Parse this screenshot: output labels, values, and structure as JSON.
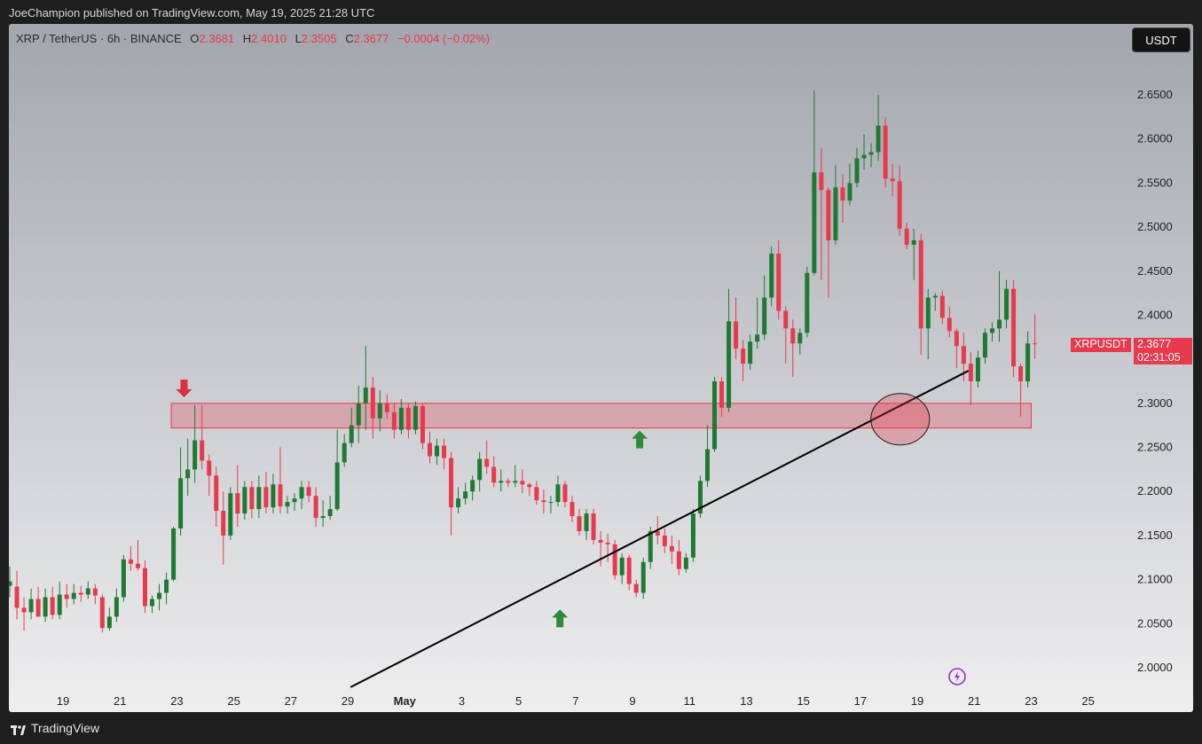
{
  "publisher_line": "JoeChampion published on TradingView.com, May 19, 2025 21:28 UTC",
  "legend": {
    "symbol": "XRP / TetherUS · 6h · BINANCE",
    "o_label": "O",
    "o": "2.3681",
    "h_label": "H",
    "h": "2.4010",
    "l_label": "L",
    "l": "2.3505",
    "c_label": "C",
    "c": "2.3677",
    "change": "−0.0004 (−0.02%)"
  },
  "currency_button": "USDT",
  "last_price": {
    "ticker": "XRPUSDT",
    "price": "2.3677",
    "countdown": "02:31:05"
  },
  "footer": {
    "brand": "TradingView"
  },
  "colors": {
    "up": "#1e7a33",
    "down": "#e8394d",
    "zone_fill": "#e8394d",
    "arrow_up": "#2f8a3c",
    "arrow_down": "#d8313f",
    "trendline": "#000000",
    "lightning": "#9b30c8"
  },
  "icons": {
    "lightning": "lightning-icon",
    "logo": "tradingview-logo-icon"
  },
  "chart_data": {
    "type": "candlestick",
    "interval": "6h",
    "y_ticks": [
      "2.6500",
      "2.6000",
      "2.5500",
      "2.5000",
      "2.4500",
      "2.4000",
      "2.3500",
      "2.3000",
      "2.2500",
      "2.2000",
      "2.1500",
      "2.1000",
      "2.0500",
      "2.0000"
    ],
    "x_ticks": [
      "19",
      "21",
      "23",
      "25",
      "27",
      "29",
      "May",
      "3",
      "5",
      "7",
      "9",
      "11",
      "13",
      "15",
      "17",
      "19",
      "21",
      "23",
      "25"
    ],
    "x_tick_days": [
      19,
      21,
      23,
      25,
      27,
      29,
      31,
      33,
      35,
      37,
      39,
      41,
      43,
      45,
      47,
      49,
      51,
      53,
      55
    ],
    "ylim": [
      1.98,
      2.72
    ],
    "xlim": [
      17.13,
      56.35
    ],
    "resistance_zone": {
      "low": 2.272,
      "high": 2.3,
      "from_day": 22.8,
      "to_day": 53.0
    },
    "trendline": {
      "from": {
        "day": 29.1,
        "price": 1.978
      },
      "to": {
        "day": 50.8,
        "price": 2.337
      }
    },
    "highlight_circle": {
      "day": 48.4,
      "price": 2.282
    },
    "arrows": [
      {
        "direction": "down",
        "day": 23.25,
        "price": 2.318
      },
      {
        "direction": "up",
        "day": 36.45,
        "price": 2.055
      },
      {
        "direction": "up",
        "day": 39.25,
        "price": 2.258
      }
    ],
    "candles": [
      {
        "day": 17.13,
        "o": 2.093,
        "h": 2.115,
        "l": 2.08,
        "c": 2.098
      },
      {
        "day": 17.38,
        "o": 2.092,
        "h": 2.11,
        "l": 2.055,
        "c": 2.068
      },
      {
        "day": 17.63,
        "o": 2.068,
        "h": 2.08,
        "l": 2.042,
        "c": 2.063
      },
      {
        "day": 17.88,
        "o": 2.063,
        "h": 2.09,
        "l": 2.055,
        "c": 2.078
      },
      {
        "day": 18.13,
        "o": 2.078,
        "h": 2.092,
        "l": 2.06,
        "c": 2.058
      },
      {
        "day": 18.38,
        "o": 2.058,
        "h": 2.09,
        "l": 2.052,
        "c": 2.08
      },
      {
        "day": 18.63,
        "o": 2.08,
        "h": 2.092,
        "l": 2.055,
        "c": 2.06
      },
      {
        "day": 18.88,
        "o": 2.06,
        "h": 2.098,
        "l": 2.055,
        "c": 2.083
      },
      {
        "day": 19.13,
        "o": 2.083,
        "h": 2.095,
        "l": 2.068,
        "c": 2.078
      },
      {
        "day": 19.38,
        "o": 2.078,
        "h": 2.095,
        "l": 2.072,
        "c": 2.085
      },
      {
        "day": 19.63,
        "o": 2.085,
        "h": 2.093,
        "l": 2.075,
        "c": 2.083
      },
      {
        "day": 19.88,
        "o": 2.083,
        "h": 2.098,
        "l": 2.078,
        "c": 2.09
      },
      {
        "day": 20.13,
        "o": 2.09,
        "h": 2.095,
        "l": 2.072,
        "c": 2.082
      },
      {
        "day": 20.38,
        "o": 2.08,
        "h": 2.083,
        "l": 2.04,
        "c": 2.045
      },
      {
        "day": 20.63,
        "o": 2.045,
        "h": 2.068,
        "l": 2.042,
        "c": 2.058
      },
      {
        "day": 20.88,
        "o": 2.058,
        "h": 2.09,
        "l": 2.052,
        "c": 2.08
      },
      {
        "day": 21.13,
        "o": 2.08,
        "h": 2.128,
        "l": 2.075,
        "c": 2.123
      },
      {
        "day": 21.38,
        "o": 2.123,
        "h": 2.138,
        "l": 2.11,
        "c": 2.118
      },
      {
        "day": 21.63,
        "o": 2.118,
        "h": 2.145,
        "l": 2.11,
        "c": 2.113
      },
      {
        "day": 21.88,
        "o": 2.113,
        "h": 2.122,
        "l": 2.062,
        "c": 2.07
      },
      {
        "day": 22.13,
        "o": 2.07,
        "h": 2.082,
        "l": 2.062,
        "c": 2.078
      },
      {
        "day": 22.38,
        "o": 2.078,
        "h": 2.095,
        "l": 2.065,
        "c": 2.085
      },
      {
        "day": 22.63,
        "o": 2.085,
        "h": 2.108,
        "l": 2.072,
        "c": 2.1
      },
      {
        "day": 22.88,
        "o": 2.1,
        "h": 2.16,
        "l": 2.098,
        "c": 2.158
      },
      {
        "day": 23.13,
        "o": 2.158,
        "h": 2.25,
        "l": 2.15,
        "c": 2.215
      },
      {
        "day": 23.38,
        "o": 2.215,
        "h": 2.26,
        "l": 2.195,
        "c": 2.225
      },
      {
        "day": 23.63,
        "o": 2.225,
        "h": 2.298,
        "l": 2.21,
        "c": 2.258
      },
      {
        "day": 23.88,
        "o": 2.258,
        "h": 2.298,
        "l": 2.225,
        "c": 2.235
      },
      {
        "day": 24.13,
        "o": 2.235,
        "h": 2.242,
        "l": 2.195,
        "c": 2.218
      },
      {
        "day": 24.38,
        "o": 2.218,
        "h": 2.228,
        "l": 2.16,
        "c": 2.178
      },
      {
        "day": 24.63,
        "o": 2.178,
        "h": 2.2,
        "l": 2.117,
        "c": 2.15
      },
      {
        "day": 24.88,
        "o": 2.15,
        "h": 2.205,
        "l": 2.145,
        "c": 2.198
      },
      {
        "day": 25.13,
        "o": 2.198,
        "h": 2.23,
        "l": 2.16,
        "c": 2.175
      },
      {
        "day": 25.38,
        "o": 2.175,
        "h": 2.212,
        "l": 2.168,
        "c": 2.205
      },
      {
        "day": 25.63,
        "o": 2.205,
        "h": 2.212,
        "l": 2.17,
        "c": 2.18
      },
      {
        "day": 25.88,
        "o": 2.18,
        "h": 2.218,
        "l": 2.17,
        "c": 2.205
      },
      {
        "day": 26.13,
        "o": 2.205,
        "h": 2.222,
        "l": 2.175,
        "c": 2.182
      },
      {
        "day": 26.38,
        "o": 2.182,
        "h": 2.22,
        "l": 2.175,
        "c": 2.208
      },
      {
        "day": 26.63,
        "o": 2.208,
        "h": 2.25,
        "l": 2.175,
        "c": 2.183
      },
      {
        "day": 26.88,
        "o": 2.183,
        "h": 2.195,
        "l": 2.175,
        "c": 2.188
      },
      {
        "day": 27.13,
        "o": 2.188,
        "h": 2.198,
        "l": 2.178,
        "c": 2.192
      },
      {
        "day": 27.38,
        "o": 2.192,
        "h": 2.212,
        "l": 2.18,
        "c": 2.205
      },
      {
        "day": 27.63,
        "o": 2.205,
        "h": 2.212,
        "l": 2.188,
        "c": 2.195
      },
      {
        "day": 27.88,
        "o": 2.195,
        "h": 2.205,
        "l": 2.16,
        "c": 2.17
      },
      {
        "day": 28.13,
        "o": 2.17,
        "h": 2.19,
        "l": 2.16,
        "c": 2.172
      },
      {
        "day": 28.38,
        "o": 2.172,
        "h": 2.195,
        "l": 2.168,
        "c": 2.18
      },
      {
        "day": 28.63,
        "o": 2.18,
        "h": 2.27,
        "l": 2.178,
        "c": 2.233
      },
      {
        "day": 28.88,
        "o": 2.233,
        "h": 2.265,
        "l": 2.228,
        "c": 2.255
      },
      {
        "day": 29.13,
        "o": 2.255,
        "h": 2.295,
        "l": 2.25,
        "c": 2.275
      },
      {
        "day": 29.38,
        "o": 2.275,
        "h": 2.32,
        "l": 2.255,
        "c": 2.3
      },
      {
        "day": 29.63,
        "o": 2.3,
        "h": 2.365,
        "l": 2.27,
        "c": 2.318
      },
      {
        "day": 29.88,
        "o": 2.318,
        "h": 2.33,
        "l": 2.26,
        "c": 2.283
      },
      {
        "day": 30.13,
        "o": 2.283,
        "h": 2.315,
        "l": 2.268,
        "c": 2.3
      },
      {
        "day": 30.38,
        "o": 2.3,
        "h": 2.31,
        "l": 2.282,
        "c": 2.29
      },
      {
        "day": 30.63,
        "o": 2.29,
        "h": 2.3,
        "l": 2.26,
        "c": 2.27
      },
      {
        "day": 30.88,
        "o": 2.27,
        "h": 2.305,
        "l": 2.265,
        "c": 2.295
      },
      {
        "day": 31.13,
        "o": 2.295,
        "h": 2.3,
        "l": 2.26,
        "c": 2.27
      },
      {
        "day": 31.38,
        "o": 2.27,
        "h": 2.302,
        "l": 2.265,
        "c": 2.297
      },
      {
        "day": 31.63,
        "o": 2.297,
        "h": 2.3,
        "l": 2.248,
        "c": 2.255
      },
      {
        "day": 31.88,
        "o": 2.255,
        "h": 2.268,
        "l": 2.232,
        "c": 2.24
      },
      {
        "day": 32.13,
        "o": 2.24,
        "h": 2.26,
        "l": 2.23,
        "c": 2.252
      },
      {
        "day": 32.38,
        "o": 2.252,
        "h": 2.26,
        "l": 2.225,
        "c": 2.238
      },
      {
        "day": 32.63,
        "o": 2.238,
        "h": 2.245,
        "l": 2.15,
        "c": 2.182
      },
      {
        "day": 32.88,
        "o": 2.182,
        "h": 2.205,
        "l": 2.175,
        "c": 2.192
      },
      {
        "day": 33.13,
        "o": 2.192,
        "h": 2.21,
        "l": 2.185,
        "c": 2.2
      },
      {
        "day": 33.38,
        "o": 2.2,
        "h": 2.218,
        "l": 2.19,
        "c": 2.213
      },
      {
        "day": 33.63,
        "o": 2.213,
        "h": 2.245,
        "l": 2.2,
        "c": 2.237
      },
      {
        "day": 33.88,
        "o": 2.237,
        "h": 2.258,
        "l": 2.22,
        "c": 2.228
      },
      {
        "day": 34.13,
        "o": 2.228,
        "h": 2.24,
        "l": 2.205,
        "c": 2.21
      },
      {
        "day": 34.38,
        "o": 2.21,
        "h": 2.225,
        "l": 2.2,
        "c": 2.212
      },
      {
        "day": 34.63,
        "o": 2.212,
        "h": 2.215,
        "l": 2.205,
        "c": 2.21
      },
      {
        "day": 34.88,
        "o": 2.21,
        "h": 2.23,
        "l": 2.205,
        "c": 2.212
      },
      {
        "day": 35.13,
        "o": 2.212,
        "h": 2.225,
        "l": 2.198,
        "c": 2.208
      },
      {
        "day": 35.38,
        "o": 2.208,
        "h": 2.21,
        "l": 2.195,
        "c": 2.205
      },
      {
        "day": 35.63,
        "o": 2.205,
        "h": 2.212,
        "l": 2.185,
        "c": 2.19
      },
      {
        "day": 35.88,
        "o": 2.19,
        "h": 2.202,
        "l": 2.175,
        "c": 2.188
      },
      {
        "day": 36.13,
        "o": 2.188,
        "h": 2.195,
        "l": 2.175,
        "c": 2.188
      },
      {
        "day": 36.38,
        "o": 2.188,
        "h": 2.218,
        "l": 2.183,
        "c": 2.208
      },
      {
        "day": 36.63,
        "o": 2.208,
        "h": 2.212,
        "l": 2.182,
        "c": 2.188
      },
      {
        "day": 36.88,
        "o": 2.188,
        "h": 2.195,
        "l": 2.165,
        "c": 2.172
      },
      {
        "day": 37.13,
        "o": 2.172,
        "h": 2.18,
        "l": 2.15,
        "c": 2.155
      },
      {
        "day": 37.38,
        "o": 2.155,
        "h": 2.18,
        "l": 2.145,
        "c": 2.175
      },
      {
        "day": 37.63,
        "o": 2.175,
        "h": 2.18,
        "l": 2.14,
        "c": 2.145
      },
      {
        "day": 37.88,
        "o": 2.145,
        "h": 2.155,
        "l": 2.115,
        "c": 2.142
      },
      {
        "day": 38.13,
        "o": 2.142,
        "h": 2.152,
        "l": 2.12,
        "c": 2.14
      },
      {
        "day": 38.38,
        "o": 2.14,
        "h": 2.145,
        "l": 2.1,
        "c": 2.105
      },
      {
        "day": 38.63,
        "o": 2.105,
        "h": 2.13,
        "l": 2.095,
        "c": 2.125
      },
      {
        "day": 38.88,
        "o": 2.125,
        "h": 2.128,
        "l": 2.088,
        "c": 2.095
      },
      {
        "day": 39.13,
        "o": 2.095,
        "h": 2.1,
        "l": 2.08,
        "c": 2.085
      },
      {
        "day": 39.38,
        "o": 2.085,
        "h": 2.125,
        "l": 2.078,
        "c": 2.12
      },
      {
        "day": 39.63,
        "o": 2.12,
        "h": 2.16,
        "l": 2.112,
        "c": 2.155
      },
      {
        "day": 39.88,
        "o": 2.155,
        "h": 2.172,
        "l": 2.14,
        "c": 2.15
      },
      {
        "day": 40.13,
        "o": 2.15,
        "h": 2.158,
        "l": 2.13,
        "c": 2.138
      },
      {
        "day": 40.38,
        "o": 2.138,
        "h": 2.15,
        "l": 2.118,
        "c": 2.132
      },
      {
        "day": 40.63,
        "o": 2.132,
        "h": 2.145,
        "l": 2.105,
        "c": 2.112
      },
      {
        "day": 40.88,
        "o": 2.112,
        "h": 2.13,
        "l": 2.108,
        "c": 2.125
      },
      {
        "day": 41.13,
        "o": 2.125,
        "h": 2.18,
        "l": 2.12,
        "c": 2.175
      },
      {
        "day": 41.38,
        "o": 2.175,
        "h": 2.218,
        "l": 2.17,
        "c": 2.212
      },
      {
        "day": 41.63,
        "o": 2.212,
        "h": 2.275,
        "l": 2.205,
        "c": 2.248
      },
      {
        "day": 41.88,
        "o": 2.248,
        "h": 2.33,
        "l": 2.245,
        "c": 2.325
      },
      {
        "day": 42.13,
        "o": 2.325,
        "h": 2.33,
        "l": 2.285,
        "c": 2.295
      },
      {
        "day": 42.38,
        "o": 2.295,
        "h": 2.43,
        "l": 2.29,
        "c": 2.393
      },
      {
        "day": 42.63,
        "o": 2.393,
        "h": 2.42,
        "l": 2.35,
        "c": 2.362
      },
      {
        "day": 42.88,
        "o": 2.362,
        "h": 2.372,
        "l": 2.325,
        "c": 2.345
      },
      {
        "day": 43.13,
        "o": 2.345,
        "h": 2.378,
        "l": 2.338,
        "c": 2.37
      },
      {
        "day": 43.38,
        "o": 2.37,
        "h": 2.42,
        "l": 2.362,
        "c": 2.378
      },
      {
        "day": 43.63,
        "o": 2.378,
        "h": 2.445,
        "l": 2.372,
        "c": 2.42
      },
      {
        "day": 43.88,
        "o": 2.42,
        "h": 2.478,
        "l": 2.41,
        "c": 2.47
      },
      {
        "day": 44.13,
        "o": 2.47,
        "h": 2.485,
        "l": 2.395,
        "c": 2.405
      },
      {
        "day": 44.38,
        "o": 2.405,
        "h": 2.41,
        "l": 2.345,
        "c": 2.385
      },
      {
        "day": 44.63,
        "o": 2.385,
        "h": 2.395,
        "l": 2.33,
        "c": 2.368
      },
      {
        "day": 44.88,
        "o": 2.368,
        "h": 2.385,
        "l": 2.355,
        "c": 2.38
      },
      {
        "day": 45.13,
        "o": 2.38,
        "h": 2.455,
        "l": 2.375,
        "c": 2.448
      },
      {
        "day": 45.38,
        "o": 2.448,
        "h": 2.655,
        "l": 2.445,
        "c": 2.562
      },
      {
        "day": 45.63,
        "o": 2.562,
        "h": 2.59,
        "l": 2.44,
        "c": 2.542
      },
      {
        "day": 45.88,
        "o": 2.542,
        "h": 2.545,
        "l": 2.42,
        "c": 2.485
      },
      {
        "day": 46.13,
        "o": 2.485,
        "h": 2.57,
        "l": 2.48,
        "c": 2.545
      },
      {
        "day": 46.38,
        "o": 2.545,
        "h": 2.56,
        "l": 2.505,
        "c": 2.53
      },
      {
        "day": 46.63,
        "o": 2.53,
        "h": 2.572,
        "l": 2.525,
        "c": 2.55
      },
      {
        "day": 46.88,
        "o": 2.55,
        "h": 2.59,
        "l": 2.545,
        "c": 2.578
      },
      {
        "day": 47.13,
        "o": 2.578,
        "h": 2.605,
        "l": 2.565,
        "c": 2.582
      },
      {
        "day": 47.38,
        "o": 2.582,
        "h": 2.595,
        "l": 2.568,
        "c": 2.585
      },
      {
        "day": 47.63,
        "o": 2.585,
        "h": 2.65,
        "l": 2.575,
        "c": 2.615
      },
      {
        "day": 47.88,
        "o": 2.615,
        "h": 2.625,
        "l": 2.545,
        "c": 2.555
      },
      {
        "day": 48.13,
        "o": 2.555,
        "h": 2.572,
        "l": 2.535,
        "c": 2.552
      },
      {
        "day": 48.38,
        "o": 2.552,
        "h": 2.57,
        "l": 2.49,
        "c": 2.498
      },
      {
        "day": 48.63,
        "o": 2.498,
        "h": 2.505,
        "l": 2.475,
        "c": 2.48
      },
      {
        "day": 48.88,
        "o": 2.48,
        "h": 2.498,
        "l": 2.44,
        "c": 2.485
      },
      {
        "day": 49.13,
        "o": 2.485,
        "h": 2.492,
        "l": 2.355,
        "c": 2.385
      },
      {
        "day": 49.38,
        "o": 2.385,
        "h": 2.43,
        "l": 2.35,
        "c": 2.42
      },
      {
        "day": 49.63,
        "o": 2.42,
        "h": 2.425,
        "l": 2.405,
        "c": 2.422
      },
      {
        "day": 49.88,
        "o": 2.422,
        "h": 2.428,
        "l": 2.39,
        "c": 2.397
      },
      {
        "day": 50.13,
        "o": 2.397,
        "h": 2.41,
        "l": 2.375,
        "c": 2.382
      },
      {
        "day": 50.38,
        "o": 2.382,
        "h": 2.385,
        "l": 2.34,
        "c": 2.365
      },
      {
        "day": 50.63,
        "o": 2.365,
        "h": 2.38,
        "l": 2.325,
        "c": 2.345
      },
      {
        "day": 50.88,
        "o": 2.345,
        "h": 2.358,
        "l": 2.298,
        "c": 2.325
      },
      {
        "day": 51.13,
        "o": 2.325,
        "h": 2.36,
        "l": 2.318,
        "c": 2.352
      },
      {
        "day": 51.38,
        "o": 2.352,
        "h": 2.385,
        "l": 2.345,
        "c": 2.38
      },
      {
        "day": 51.63,
        "o": 2.38,
        "h": 2.392,
        "l": 2.37,
        "c": 2.385
      },
      {
        "day": 51.88,
        "o": 2.385,
        "h": 2.45,
        "l": 2.37,
        "c": 2.395
      },
      {
        "day": 52.13,
        "o": 2.395,
        "h": 2.44,
        "l": 2.385,
        "c": 2.43
      },
      {
        "day": 52.38,
        "o": 2.43,
        "h": 2.44,
        "l": 2.33,
        "c": 2.342
      },
      {
        "day": 52.63,
        "o": 2.342,
        "h": 2.345,
        "l": 2.285,
        "c": 2.325
      },
      {
        "day": 52.88,
        "o": 2.325,
        "h": 2.382,
        "l": 2.318,
        "c": 2.368
      },
      {
        "day": 53.13,
        "o": 2.3681,
        "h": 2.401,
        "l": 2.3505,
        "c": 2.3677
      }
    ]
  }
}
